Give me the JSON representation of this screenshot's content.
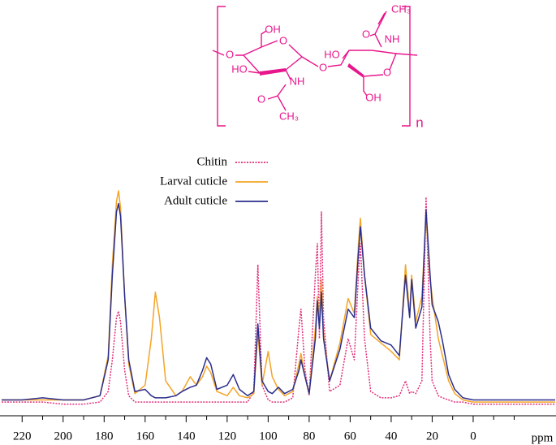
{
  "chart_data": {
    "type": "line",
    "x_label": "ppm",
    "xlim": [
      230,
      -40
    ],
    "xticks": [
      220,
      200,
      180,
      160,
      140,
      120,
      100,
      80,
      60,
      40,
      20,
      0
    ],
    "xminorticks": [
      210,
      190,
      170,
      150,
      130,
      110,
      90,
      70,
      50,
      30,
      10,
      -10,
      -20
    ],
    "ylim": [
      -6.5,
      100
    ],
    "legend": "top-center",
    "x": [
      230,
      220,
      210,
      200,
      190,
      182,
      178,
      176,
      174,
      173,
      172,
      170,
      168,
      165,
      160,
      157,
      155,
      153,
      150,
      145,
      142,
      138,
      135,
      132,
      130,
      128,
      125,
      120,
      117,
      114,
      110,
      107,
      105,
      103,
      100,
      98,
      95,
      92,
      88,
      85,
      84,
      82,
      80,
      77,
      76,
      75,
      74,
      73,
      70,
      65,
      61,
      58,
      56,
      55,
      53,
      50,
      45,
      40,
      36,
      33,
      31,
      30,
      28,
      25,
      23,
      21,
      20,
      17,
      15,
      12,
      9,
      5,
      0,
      -10,
      -20,
      -30,
      -40
    ],
    "series": [
      {
        "name": "Chitin",
        "color": "#e0307a",
        "linestyle": "dotted",
        "values": [
          0,
          0,
          0,
          -1,
          -1,
          0,
          5,
          20,
          40,
          43,
          38,
          15,
          3,
          0,
          0,
          0,
          0,
          0,
          0,
          0,
          0,
          0,
          0,
          0,
          0,
          0,
          0,
          0,
          0,
          0,
          0,
          5,
          65,
          8,
          1,
          0,
          0,
          0,
          2,
          35,
          44,
          15,
          3,
          60,
          75,
          30,
          90,
          40,
          5,
          8,
          30,
          20,
          60,
          75,
          30,
          5,
          2,
          2,
          3,
          10,
          4,
          5,
          4,
          10,
          97,
          30,
          10,
          3,
          2,
          1,
          0,
          0,
          -1,
          -1,
          -1,
          -1,
          -1
        ]
      },
      {
        "name": "Larval cuticle",
        "color": "#f4a425",
        "linestyle": "solid",
        "values": [
          1,
          1,
          1,
          1,
          1,
          3,
          22,
          65,
          95,
          100,
          92,
          50,
          18,
          4,
          8,
          30,
          52,
          40,
          10,
          3,
          5,
          12,
          8,
          12,
          17,
          14,
          5,
          3,
          7,
          3,
          2,
          4,
          33,
          8,
          24,
          12,
          6,
          3,
          5,
          18,
          23,
          12,
          4,
          35,
          50,
          40,
          58,
          32,
          10,
          28,
          49,
          42,
          74,
          87,
          60,
          32,
          28,
          24,
          20,
          65,
          42,
          60,
          38,
          50,
          88,
          58,
          50,
          30,
          22,
          10,
          4,
          1,
          0,
          0,
          0,
          0,
          0
        ]
      },
      {
        "name": "Adult cuticle",
        "color": "#2b2e8c",
        "linestyle": "solid",
        "values": [
          1,
          1,
          2,
          1,
          1,
          3,
          20,
          60,
          90,
          94,
          88,
          50,
          20,
          5,
          6,
          3,
          2,
          2,
          2,
          3,
          5,
          7,
          8,
          15,
          21,
          18,
          6,
          8,
          13,
          6,
          3,
          5,
          37,
          10,
          5,
          4,
          7,
          4,
          6,
          15,
          20,
          12,
          4,
          30,
          48,
          35,
          52,
          30,
          10,
          25,
          44,
          40,
          70,
          83,
          60,
          35,
          29,
          27,
          22,
          60,
          40,
          58,
          35,
          45,
          91,
          60,
          46,
          38,
          29,
          13,
          6,
          2,
          1,
          1,
          1,
          1,
          1
        ]
      }
    ],
    "structure_labels": [
      "O",
      "OH",
      "O",
      "HO",
      "NH",
      "O",
      "CH₃",
      "O",
      "HO",
      "O",
      "O",
      "NH",
      "CH₃",
      "OH",
      "n"
    ]
  }
}
